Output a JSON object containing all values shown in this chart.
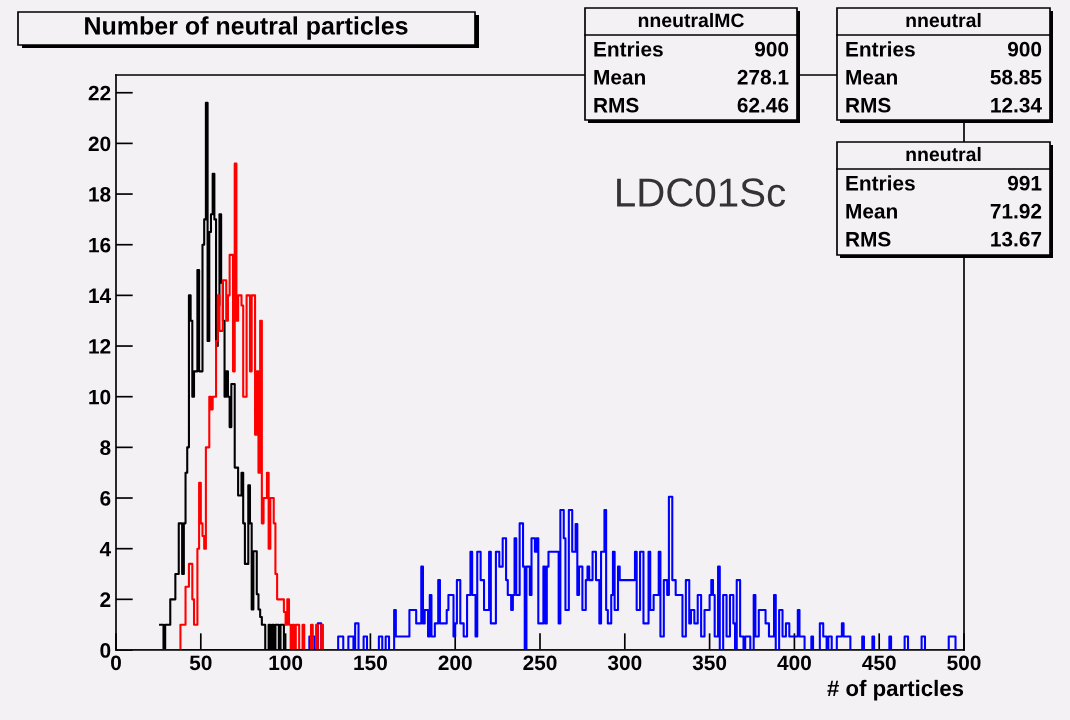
{
  "chart_data": {
    "type": "step",
    "title": "Number of neutral particles",
    "xlabel": "# of particles",
    "xlim": [
      0,
      500
    ],
    "xticks": [
      0,
      50,
      100,
      150,
      200,
      250,
      300,
      350,
      400,
      450,
      500
    ],
    "ylim": [
      0,
      22.7
    ],
    "yticks": [
      0,
      2,
      4,
      6,
      8,
      10,
      12,
      14,
      16,
      18,
      20,
      22
    ],
    "grid": false,
    "annotations": [
      "LDC01Sc",
      "nneutralMC",
      "Entries",
      "900",
      "Mean",
      "278.1",
      "RMS",
      "62.46",
      "nneutral",
      "Entries",
      "900",
      "Mean",
      "58.85",
      "RMS",
      "12.34",
      "nneutral",
      "Entries",
      "991",
      "Mean",
      "71.92",
      "RMS",
      "13.67"
    ],
    "series": [
      {
        "color": "#0000ff",
        "x": [
          0,
          114,
          117,
          119,
          121,
          131,
          134,
          137,
          140,
          141,
          143,
          146,
          148,
          155,
          157,
          159,
          161,
          164,
          165,
          173,
          177,
          180,
          181,
          182,
          184,
          185,
          186,
          188,
          190,
          191,
          195,
          196,
          199,
          200,
          201,
          203,
          205,
          207,
          209,
          210,
          212,
          213,
          215,
          217,
          220,
          221,
          224,
          226,
          228,
          230,
          231,
          233,
          234,
          235,
          236,
          238,
          240,
          241,
          242,
          244,
          245,
          247,
          248,
          249,
          252,
          253,
          254,
          255,
          261,
          262,
          264,
          265,
          267,
          269,
          271,
          272,
          273,
          275,
          277,
          278,
          279,
          281,
          283,
          285,
          286,
          288,
          289,
          290,
          292,
          293,
          294,
          296,
          297,
          303,
          306,
          307,
          309,
          311,
          314,
          315,
          317,
          320,
          321,
          323,
          325,
          326,
          328,
          330,
          334,
          336,
          338,
          339,
          341,
          343,
          345,
          347,
          350,
          351,
          352,
          353,
          355,
          356,
          358,
          360,
          362,
          364,
          365,
          366,
          368,
          370,
          371,
          374,
          376,
          377,
          379,
          383,
          385,
          388,
          389,
          391,
          393,
          395,
          397,
          402,
          403,
          406,
          410,
          411,
          415,
          417,
          419,
          420,
          422,
          425,
          428,
          429,
          433,
          440,
          441,
          446,
          447,
          456,
          457,
          465,
          467,
          475,
          477,
          491,
          495,
          500
        ],
        "values": [
          0,
          0.53,
          0,
          1.05,
          0,
          0.53,
          0,
          0.53,
          0,
          1.05,
          0,
          0.53,
          0,
          0.53,
          0,
          0.53,
          0,
          1.58,
          0.53,
          1.58,
          1.05,
          3.29,
          1.05,
          1.58,
          0.53,
          2.17,
          0.53,
          1.05,
          2.76,
          1.05,
          1.58,
          2.17,
          0.53,
          1.05,
          2.76,
          1.05,
          0.53,
          2.17,
          3.88,
          2.17,
          0.53,
          3.88,
          2.76,
          1.58,
          3.88,
          1.05,
          3.88,
          3.29,
          4.41,
          2.76,
          2.17,
          1.58,
          2.17,
          4.41,
          2.17,
          5.0,
          3.29,
          0,
          3.29,
          2.17,
          4.41,
          3.88,
          4.41,
          1.05,
          3.29,
          1.05,
          3.29,
          3.88,
          1.05,
          5.53,
          4.41,
          1.58,
          5.53,
          3.88,
          4.97,
          2.17,
          3.29,
          1.58,
          2.76,
          3.29,
          2.76,
          3.88,
          2.76,
          1.05,
          3.88,
          5.53,
          1.58,
          1.05,
          2.17,
          3.88,
          1.58,
          3.29,
          2.76,
          2.76,
          3.88,
          1.58,
          3.88,
          1.05,
          3.88,
          1.58,
          2.17,
          3.88,
          0.53,
          2.76,
          2.17,
          6.05,
          2.76,
          2.17,
          0.53,
          2.76,
          1.05,
          1.58,
          1.05,
          2.17,
          0.53,
          1.58,
          2.17,
          2.76,
          2.17,
          0.53,
          3.29,
          0,
          2.17,
          0.53,
          2.17,
          1.05,
          0,
          2.76,
          0.53,
          0,
          0.53,
          0,
          2.17,
          0.53,
          1.58,
          1.05,
          0.53,
          2.17,
          0,
          1.58,
          0.53,
          1.05,
          0.53,
          1.58,
          0.53,
          0,
          0.53,
          0,
          1.05,
          0.53,
          0,
          0.53,
          0,
          0.53,
          1.05,
          0.53,
          0,
          0.53,
          0,
          0.53,
          0,
          0.53,
          0,
          0.53,
          0,
          0.53,
          0,
          0.53,
          0,
          0
        ]
      },
      {
        "color": "#000000",
        "x": [
          26,
          28,
          29,
          32,
          35,
          37,
          39,
          40,
          41,
          42,
          43,
          44,
          45,
          46,
          48,
          49,
          51,
          52,
          53,
          54,
          55,
          56,
          57,
          58,
          59,
          60,
          61,
          62,
          63,
          64,
          65,
          66,
          67,
          68,
          70,
          72,
          74,
          75,
          76,
          78,
          79,
          80,
          81,
          83,
          84,
          85,
          86,
          88,
          90,
          91,
          92,
          93,
          94,
          96,
          97,
          99,
          100
        ],
        "values": [
          1,
          0,
          1,
          2,
          3,
          5,
          3,
          5,
          7,
          8,
          14,
          13,
          10,
          11,
          15,
          11,
          16,
          17,
          21.6,
          12.2,
          16.5,
          17.2,
          18.8,
          17,
          12,
          13.6,
          17.2,
          14.5,
          13,
          10,
          11,
          10,
          8.8,
          10.5,
          7.2,
          6.1,
          7,
          5,
          3.4,
          6.5,
          5,
          1.6,
          3.9,
          2.2,
          1.6,
          1.3,
          1,
          0,
          1,
          0,
          1,
          0,
          1,
          0,
          1,
          0,
          0
        ]
      },
      {
        "color": "#ff0000",
        "x": [
          0,
          38,
          41,
          43,
          45,
          46,
          48,
          49,
          50,
          51,
          52,
          53,
          55,
          56,
          57,
          59,
          60,
          61,
          63,
          65,
          66,
          67,
          69,
          70,
          71,
          72,
          74,
          75,
          77,
          79,
          80,
          82,
          83,
          84,
          85,
          86,
          87,
          89,
          90,
          91,
          93,
          94,
          95,
          97,
          99,
          100,
          101,
          102,
          103,
          104,
          105,
          106,
          108,
          110,
          111,
          115,
          116,
          118,
          119,
          121,
          122,
          500
        ],
        "values": [
          0,
          1,
          2.5,
          3.4,
          2,
          1,
          4,
          6.6,
          5,
          4.5,
          4,
          8,
          10,
          9.5,
          10,
          12.2,
          14,
          12.6,
          14.6,
          13,
          14,
          15.6,
          11,
          19.2,
          13,
          14,
          13.6,
          10,
          14,
          11,
          14,
          8.5,
          11,
          7,
          13,
          5,
          6,
          7,
          4,
          6,
          5,
          3,
          2,
          2,
          1.5,
          1,
          2,
          1,
          0,
          1,
          0,
          1,
          0,
          1,
          0,
          1,
          0,
          1,
          0,
          1,
          0,
          0
        ]
      }
    ]
  }
}
